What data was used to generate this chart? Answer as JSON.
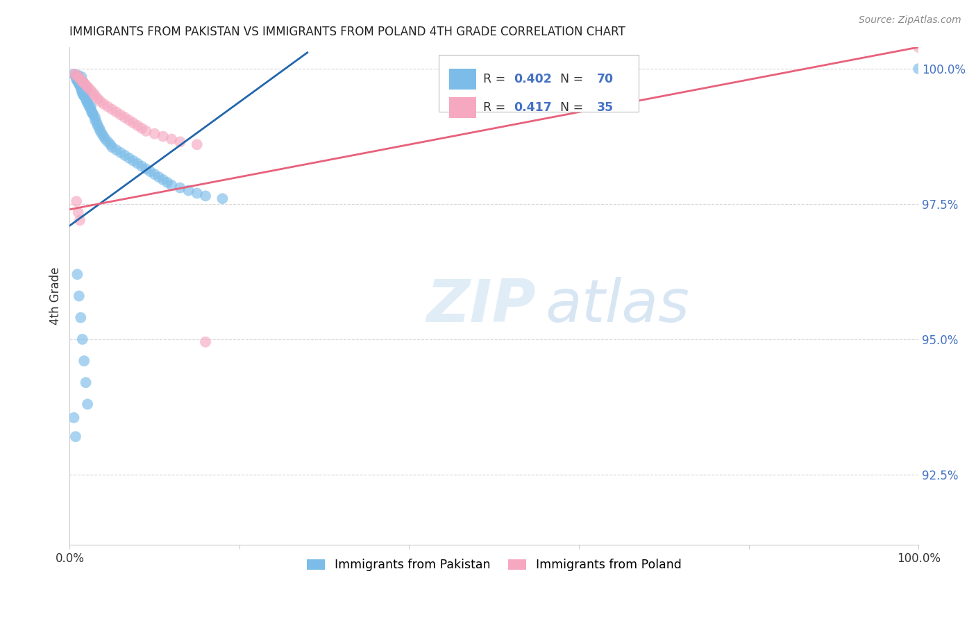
{
  "title": "IMMIGRANTS FROM PAKISTAN VS IMMIGRANTS FROM POLAND 4TH GRADE CORRELATION CHART",
  "source": "Source: ZipAtlas.com",
  "ylabel": "4th Grade",
  "watermark_zip": "ZIP",
  "watermark_atlas": "atlas",
  "legend_blue_r": "0.402",
  "legend_blue_n": "70",
  "legend_pink_r": "0.417",
  "legend_pink_n": "35",
  "legend_label_blue": "Immigrants from Pakistan",
  "legend_label_pink": "Immigrants from Poland",
  "blue_color": "#7bbce8",
  "pink_color": "#f5a8c0",
  "blue_line_color": "#2166ac",
  "pink_line_color": "#e8607a",
  "grid_color": "#cccccc",
  "title_color": "#222222",
  "r_n_color": "#4472c4",
  "axis_tick_color": "#4472c4",
  "ylabel_color": "#333333",
  "source_color": "#888888",
  "xlim": [
    0.0,
    1.0
  ],
  "ylim": [
    0.912,
    1.004
  ],
  "ytick_positions": [
    0.925,
    0.95,
    0.975,
    1.0
  ],
  "ytick_labels": [
    "92.5%",
    "95.0%",
    "97.5%",
    "100.0%"
  ],
  "xtick_positions": [
    0.0,
    0.2,
    0.4,
    0.6,
    0.8,
    1.0
  ],
  "blue_line_x": [
    0.0,
    0.28
  ],
  "blue_line_y": [
    0.971,
    1.003
  ],
  "pink_line_x": [
    0.0,
    1.0
  ],
  "pink_line_y": [
    0.974,
    1.004
  ],
  "pakistan_x": [
    0.005,
    0.007,
    0.008,
    0.009,
    0.01,
    0.01,
    0.011,
    0.012,
    0.013,
    0.013,
    0.014,
    0.014,
    0.015,
    0.015,
    0.016,
    0.016,
    0.017,
    0.018,
    0.019,
    0.02,
    0.02,
    0.021,
    0.022,
    0.023,
    0.025,
    0.025,
    0.026,
    0.027,
    0.028,
    0.03,
    0.03,
    0.032,
    0.033,
    0.035,
    0.036,
    0.038,
    0.04,
    0.042,
    0.045,
    0.048,
    0.05,
    0.055,
    0.06,
    0.065,
    0.07,
    0.075,
    0.08,
    0.085,
    0.09,
    0.095,
    0.1,
    0.105,
    0.11,
    0.115,
    0.12,
    0.13,
    0.14,
    0.15,
    0.16,
    0.18,
    0.005,
    0.007,
    0.009,
    0.011,
    0.013,
    0.015,
    0.017,
    0.019,
    0.021,
    1.0
  ],
  "pakistan_y": [
    0.999,
    0.9985,
    0.998,
    0.9978,
    0.9975,
    0.9988,
    0.9972,
    0.997,
    0.9968,
    0.9965,
    0.996,
    0.9985,
    0.9958,
    0.9955,
    0.9975,
    0.9952,
    0.995,
    0.9948,
    0.9945,
    0.994,
    0.9962,
    0.9938,
    0.9935,
    0.993,
    0.993,
    0.9925,
    0.992,
    0.9918,
    0.9915,
    0.991,
    0.9905,
    0.99,
    0.9895,
    0.989,
    0.9885,
    0.988,
    0.9875,
    0.987,
    0.9865,
    0.986,
    0.9855,
    0.985,
    0.9845,
    0.984,
    0.9835,
    0.983,
    0.9825,
    0.982,
    0.9815,
    0.981,
    0.9805,
    0.98,
    0.9795,
    0.979,
    0.9785,
    0.978,
    0.9775,
    0.977,
    0.9765,
    0.976,
    0.9355,
    0.932,
    0.962,
    0.958,
    0.954,
    0.95,
    0.946,
    0.942,
    0.938,
    1.0
  ],
  "poland_x": [
    0.006,
    0.008,
    0.01,
    0.012,
    0.014,
    0.016,
    0.018,
    0.02,
    0.022,
    0.025,
    0.028,
    0.03,
    0.033,
    0.036,
    0.04,
    0.045,
    0.05,
    0.055,
    0.06,
    0.065,
    0.07,
    0.075,
    0.08,
    0.085,
    0.09,
    0.1,
    0.11,
    0.12,
    0.13,
    0.15,
    0.008,
    0.01,
    0.012,
    0.16,
    1.0
  ],
  "poland_y": [
    0.999,
    0.9988,
    0.9985,
    0.9982,
    0.9978,
    0.9975,
    0.9972,
    0.9968,
    0.9965,
    0.996,
    0.9955,
    0.995,
    0.9945,
    0.994,
    0.9935,
    0.993,
    0.9925,
    0.992,
    0.9915,
    0.991,
    0.9905,
    0.99,
    0.9895,
    0.989,
    0.9885,
    0.988,
    0.9875,
    0.987,
    0.9865,
    0.986,
    0.9755,
    0.9735,
    0.972,
    0.9495,
    1.004
  ]
}
